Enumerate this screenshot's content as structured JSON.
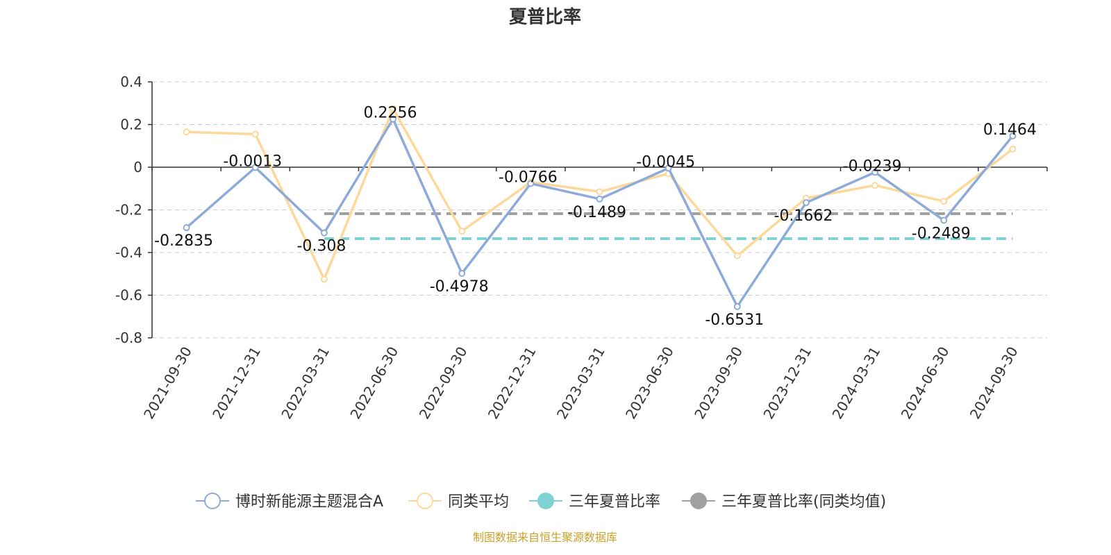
{
  "chart_data": {
    "type": "line",
    "title": "夏普比率",
    "categories": [
      "2021-09-30",
      "2021-12-31",
      "2022-03-31",
      "2022-06-30",
      "2022-09-30",
      "2022-12-31",
      "2023-03-31",
      "2023-06-30",
      "2023-09-30",
      "2023-12-31",
      "2024-03-31",
      "2024-06-30",
      "2024-09-30"
    ],
    "ylim": [
      -0.8,
      0.4
    ],
    "yticks": [
      0.4,
      0.2,
      0,
      -0.2,
      -0.4,
      -0.6,
      -0.8
    ],
    "ytick_labels": [
      "0.4",
      "0.2",
      "0",
      "-0.2",
      "-0.4",
      "-0.6",
      "-0.8"
    ],
    "grid": true,
    "legend_position": "bottom",
    "series": [
      {
        "name": "博时新能源主题混合A",
        "color": "#8eaad8",
        "values": [
          -0.2835,
          -0.0013,
          -0.308,
          0.2256,
          -0.4978,
          -0.0766,
          -0.1489,
          -0.0045,
          -0.6531,
          -0.1662,
          -0.0239,
          -0.2489,
          0.1464
        ],
        "data_labels": [
          "-0.2835",
          "-0.0013",
          "-0.308",
          "0.2256",
          "-0.4978",
          "-0.0766",
          "-0.1489",
          "-0.0045",
          "-0.6531",
          "-0.1662",
          "-0.0239",
          "-0.2489",
          "0.1464"
        ]
      },
      {
        "name": "同类平均",
        "color": "#fcd99a",
        "values": [
          0.165,
          0.155,
          -0.525,
          0.275,
          -0.3,
          -0.07,
          -0.115,
          -0.03,
          -0.415,
          -0.145,
          -0.085,
          -0.16,
          0.085
        ]
      }
    ],
    "reference_lines": [
      {
        "name": "三年夏普比率",
        "color": "#7fd3d5",
        "value": -0.335
      },
      {
        "name": "三年夏普比率(同类均值)",
        "color": "#a0a0a0",
        "value": -0.218
      }
    ],
    "source": "制图数据来自恒生聚源数据库"
  }
}
